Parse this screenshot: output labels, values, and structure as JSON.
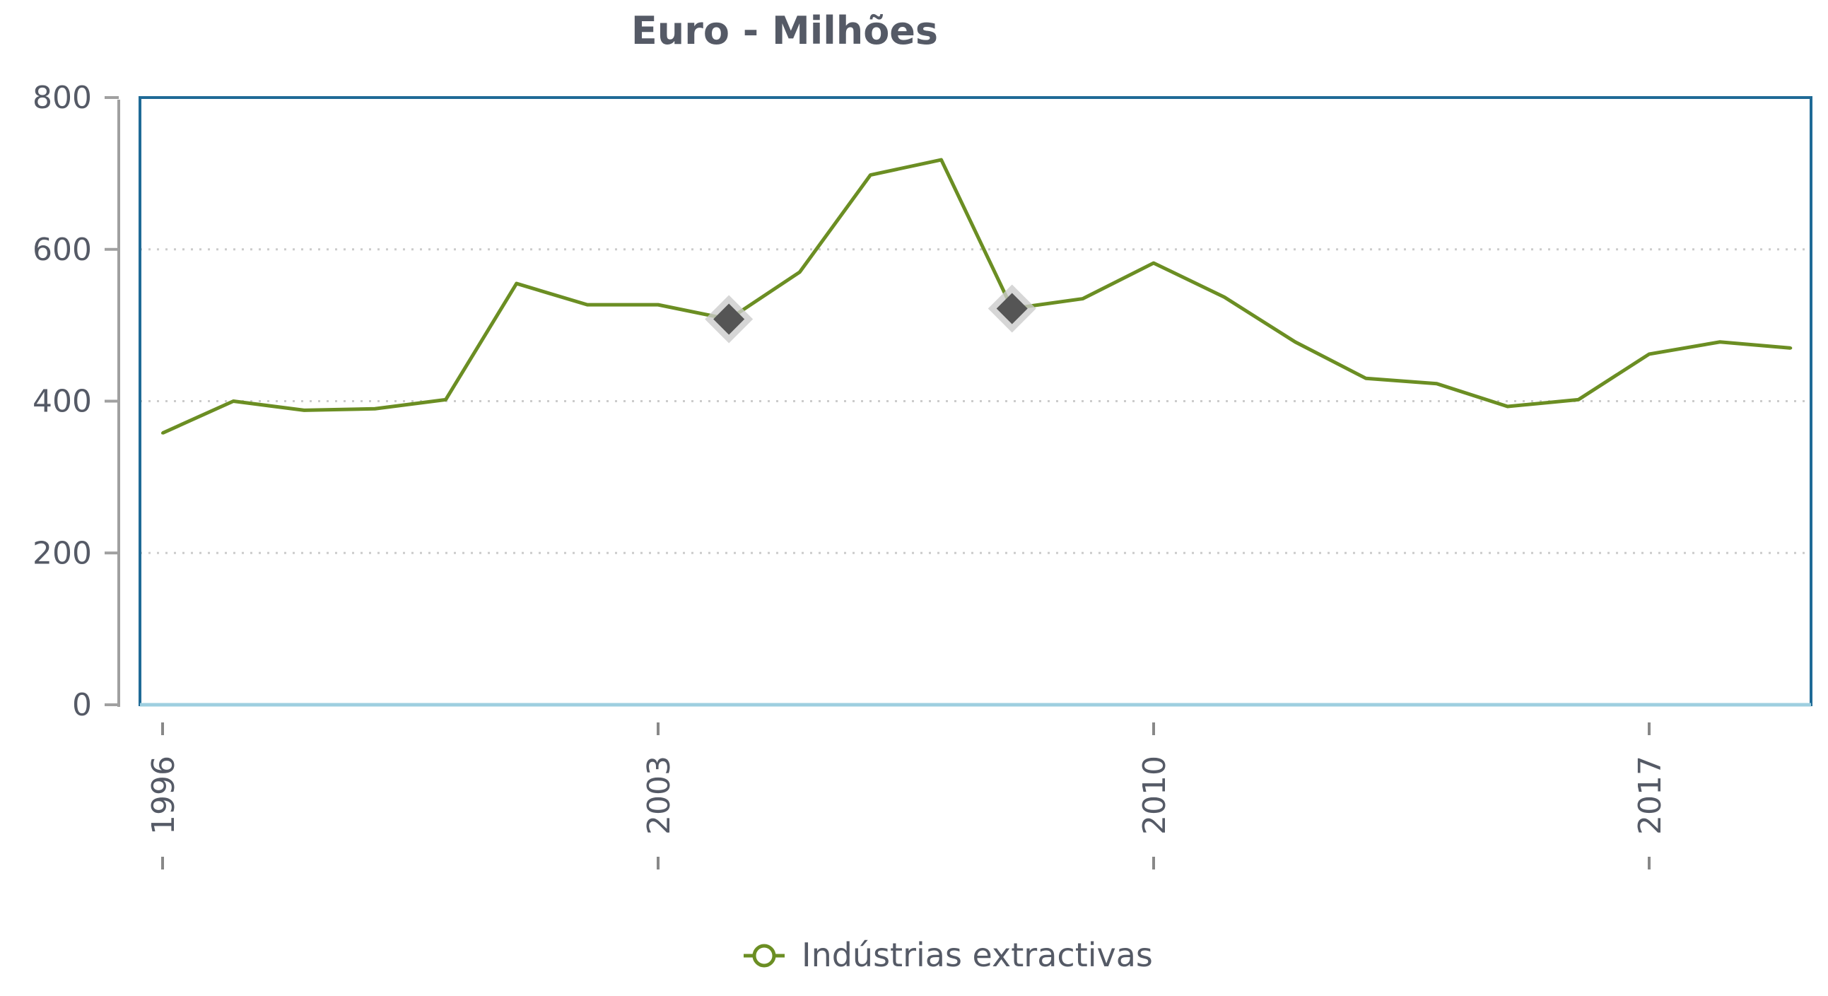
{
  "chart_data": {
    "type": "line",
    "title": "Euro - Milhões",
    "xlabel": "",
    "ylabel": "",
    "x": [
      1996,
      1997,
      1998,
      1999,
      2000,
      2001,
      2002,
      2003,
      2004,
      2005,
      2006,
      2007,
      2008,
      2009,
      2010,
      2011,
      2012,
      2013,
      2014,
      2015,
      2016,
      2017,
      2018,
      2019
    ],
    "series": [
      {
        "name": "Indústrias extractivas",
        "color": "#6b8e23",
        "values": [
          358,
          400,
          388,
          390,
          402,
          555,
          527,
          527,
          508,
          570,
          698,
          718,
          522,
          535,
          582,
          537,
          478,
          430,
          423,
          393,
          402,
          462,
          478,
          470
        ]
      }
    ],
    "highlighted_points": [
      {
        "x": 2004,
        "y": 508
      },
      {
        "x": 2008,
        "y": 522
      }
    ],
    "x_ticks": [
      "1996",
      "2003",
      "2010",
      "2017"
    ],
    "y_ticks": [
      "0",
      "200",
      "400",
      "600",
      "800"
    ],
    "ylim": [
      0,
      800
    ],
    "xlim": [
      1996,
      2019
    ],
    "grid": "horizontal dotted",
    "legend_position": "bottom-center",
    "colors": {
      "frame": "#1f6a96",
      "axis_line": "#9ecfe0",
      "grid": "#cccccc",
      "marker": "#555555",
      "text": "#555a66"
    }
  }
}
